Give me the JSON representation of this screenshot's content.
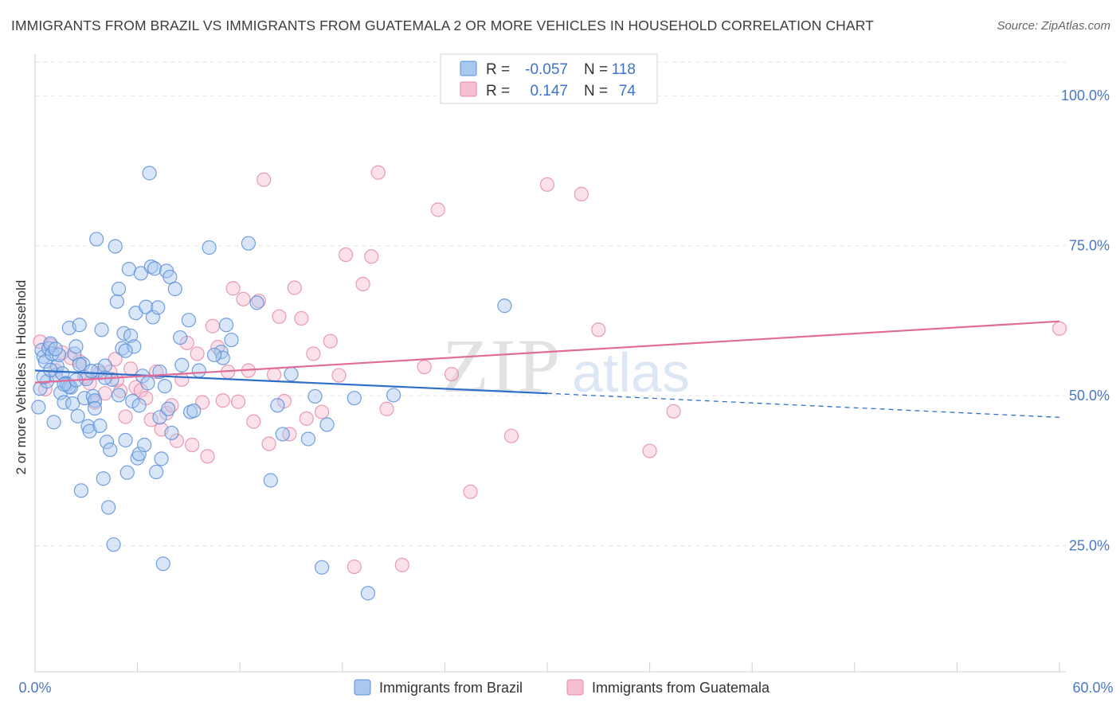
{
  "title": "IMMIGRANTS FROM BRAZIL VS IMMIGRANTS FROM GUATEMALA 2 OR MORE VEHICLES IN HOUSEHOLD CORRELATION CHART",
  "source": "Source: ZipAtlas.com",
  "watermark": {
    "zip": "ZIP",
    "atlas": "atlas"
  },
  "colors": {
    "brazil_fill": "#a9c8f0",
    "brazil_stroke": "#5b8fd8",
    "brazil_line": "#2f6fc8",
    "guatemala_fill": "#f6bfd1",
    "guatemala_stroke": "#e58aa8",
    "guatemala_line": "#e06c97",
    "tick_text": "#4a78c2",
    "grid": "#e3e3e3"
  },
  "legend": {
    "brazil": {
      "r_label": "R =",
      "r_value": "-0.057",
      "n_label": "N =",
      "n_value": "118"
    },
    "guatemala": {
      "r_label": "R =",
      "r_value": "0.147",
      "n_label": "N =",
      "n_value": "74"
    }
  },
  "chart_data": {
    "type": "scatter",
    "title": "IMMIGRANTS FROM BRAZIL VS IMMIGRANTS FROM GUATEMALA 2 OR MORE VEHICLES IN HOUSEHOLD CORRELATION CHART",
    "xlabel": "",
    "ylabel": "2 or more Vehicles in Household",
    "xlim": [
      0,
      60
    ],
    "ylim": [
      4,
      106
    ],
    "x_tick_labels": [
      "0.0%",
      "60.0%"
    ],
    "y_ticks": [
      25,
      50,
      75,
      100
    ],
    "y_tick_labels": [
      "25.0%",
      "50.0%",
      "75.0%",
      "100.0%"
    ],
    "legend_position": "top-center",
    "series": [
      {
        "name": "Immigrants from Brazil",
        "r": -0.057,
        "n": 118,
        "trend": {
          "x0": 0,
          "y0": 54.2,
          "x1": 30,
          "y1": 50.4,
          "dashed_to_x": 60,
          "dashed_to_y": 46.4
        },
        "points": [
          [
            0.2,
            48.1
          ],
          [
            0.3,
            51.2
          ],
          [
            0.4,
            57.6
          ],
          [
            0.5,
            56.5
          ],
          [
            0.6,
            55.7
          ],
          [
            0.7,
            52.4
          ],
          [
            0.8,
            57.9
          ],
          [
            0.9,
            58.7
          ],
          [
            1.0,
            57.0
          ],
          [
            1.1,
            45.6
          ],
          [
            1.2,
            53.4
          ],
          [
            1.3,
            54.9
          ],
          [
            1.4,
            56.8
          ],
          [
            1.5,
            50.5
          ],
          [
            1.6,
            53.7
          ],
          [
            1.7,
            48.9
          ],
          [
            1.8,
            52.1
          ],
          [
            1.9,
            51.9
          ],
          [
            2.0,
            61.3
          ],
          [
            2.1,
            51.4
          ],
          [
            2.2,
            48.7
          ],
          [
            2.3,
            57.0
          ],
          [
            2.4,
            58.2
          ],
          [
            2.5,
            46.6
          ],
          [
            2.6,
            61.8
          ],
          [
            2.7,
            34.2
          ],
          [
            2.8,
            55.3
          ],
          [
            2.9,
            49.6
          ],
          [
            3.1,
            44.9
          ],
          [
            3.2,
            44.1
          ],
          [
            3.4,
            49.9
          ],
          [
            3.5,
            49.2
          ],
          [
            3.6,
            76.1
          ],
          [
            3.7,
            54.2
          ],
          [
            3.8,
            45.0
          ],
          [
            3.9,
            61.0
          ],
          [
            4.0,
            36.2
          ],
          [
            4.1,
            55.0
          ],
          [
            4.2,
            42.3
          ],
          [
            4.3,
            31.4
          ],
          [
            4.4,
            41.0
          ],
          [
            4.5,
            52.7
          ],
          [
            4.6,
            25.2
          ],
          [
            4.7,
            74.9
          ],
          [
            4.8,
            65.7
          ],
          [
            4.9,
            67.8
          ],
          [
            5.1,
            57.9
          ],
          [
            5.2,
            60.4
          ],
          [
            5.3,
            42.6
          ],
          [
            5.4,
            37.2
          ],
          [
            5.5,
            71.1
          ],
          [
            5.6,
            60.0
          ],
          [
            5.7,
            49.1
          ],
          [
            5.8,
            58.2
          ],
          [
            5.9,
            63.8
          ],
          [
            6.0,
            39.6
          ],
          [
            6.1,
            40.3
          ],
          [
            6.2,
            70.4
          ],
          [
            6.3,
            53.3
          ],
          [
            6.4,
            41.8
          ],
          [
            6.5,
            64.8
          ],
          [
            6.6,
            52.1
          ],
          [
            6.7,
            87.1
          ],
          [
            6.8,
            71.5
          ],
          [
            6.9,
            63.1
          ],
          [
            7.0,
            71.2
          ],
          [
            7.1,
            37.3
          ],
          [
            7.2,
            64.7
          ],
          [
            7.3,
            46.4
          ],
          [
            7.4,
            39.5
          ],
          [
            7.5,
            22.0
          ],
          [
            7.6,
            51.6
          ],
          [
            7.7,
            70.8
          ],
          [
            7.8,
            47.8
          ],
          [
            7.9,
            69.8
          ],
          [
            8.0,
            43.8
          ],
          [
            8.2,
            67.8
          ],
          [
            8.5,
            59.7
          ],
          [
            9.0,
            62.6
          ],
          [
            9.1,
            47.3
          ],
          [
            9.3,
            47.5
          ],
          [
            10.2,
            74.7
          ],
          [
            10.9,
            57.3
          ],
          [
            11.0,
            56.3
          ],
          [
            11.5,
            59.3
          ],
          [
            12.5,
            75.4
          ],
          [
            11.2,
            61.8
          ],
          [
            9.6,
            54.2
          ],
          [
            10.5,
            56.8
          ],
          [
            13.0,
            65.5
          ],
          [
            13.8,
            35.9
          ],
          [
            14.2,
            48.4
          ],
          [
            14.5,
            43.6
          ],
          [
            15.0,
            53.6
          ],
          [
            16.0,
            42.8
          ],
          [
            16.4,
            49.9
          ],
          [
            16.8,
            21.4
          ],
          [
            17.1,
            45.2
          ],
          [
            18.7,
            49.6
          ],
          [
            19.5,
            17.1
          ],
          [
            21.0,
            50.1
          ],
          [
            27.5,
            65.0
          ],
          [
            0.5,
            53.1
          ],
          [
            1.2,
            57.8
          ],
          [
            2.0,
            51.5
          ],
          [
            2.6,
            55.2
          ],
          [
            3.0,
            52.8
          ],
          [
            3.3,
            54.1
          ],
          [
            4.1,
            53.0
          ],
          [
            4.9,
            50.1
          ],
          [
            5.3,
            57.5
          ],
          [
            6.1,
            48.4
          ],
          [
            7.3,
            54.0
          ],
          [
            8.6,
            55.1
          ],
          [
            1.7,
            51.9
          ],
          [
            0.9,
            54.3
          ],
          [
            3.5,
            47.9
          ],
          [
            2.4,
            52.6
          ]
        ]
      },
      {
        "name": "Immigrants from Guatemala",
        "r": 0.147,
        "n": 74,
        "trend": {
          "x0": 0,
          "y0": 52.2,
          "x1": 60,
          "y1": 62.4
        },
        "points": [
          [
            0.3,
            59.0
          ],
          [
            0.6,
            51.1
          ],
          [
            0.9,
            58.4
          ],
          [
            1.2,
            54.2
          ],
          [
            1.6,
            57.2
          ],
          [
            2.1,
            56.3
          ],
          [
            2.6,
            55.7
          ],
          [
            2.9,
            53.1
          ],
          [
            3.2,
            52.1
          ],
          [
            3.5,
            48.9
          ],
          [
            3.8,
            53.8
          ],
          [
            4.1,
            50.4
          ],
          [
            4.4,
            54.0
          ],
          [
            4.7,
            56.1
          ],
          [
            5.0,
            50.8
          ],
          [
            5.3,
            46.5
          ],
          [
            5.6,
            54.5
          ],
          [
            5.9,
            51.4
          ],
          [
            6.2,
            50.9
          ],
          [
            6.5,
            49.6
          ],
          [
            6.8,
            46.0
          ],
          [
            7.1,
            54.0
          ],
          [
            7.4,
            44.4
          ],
          [
            7.7,
            47.1
          ],
          [
            8.0,
            48.4
          ],
          [
            8.3,
            42.5
          ],
          [
            8.6,
            52.7
          ],
          [
            8.9,
            58.8
          ],
          [
            9.2,
            41.8
          ],
          [
            9.5,
            57.0
          ],
          [
            9.8,
            48.9
          ],
          [
            10.1,
            39.9
          ],
          [
            10.4,
            61.6
          ],
          [
            10.7,
            58.1
          ],
          [
            11.0,
            49.2
          ],
          [
            11.3,
            54.0
          ],
          [
            11.6,
            67.9
          ],
          [
            11.9,
            49.0
          ],
          [
            12.2,
            66.1
          ],
          [
            12.5,
            54.2
          ],
          [
            12.8,
            45.7
          ],
          [
            13.1,
            65.8
          ],
          [
            13.4,
            86.0
          ],
          [
            13.7,
            42.0
          ],
          [
            14.0,
            53.5
          ],
          [
            14.3,
            63.2
          ],
          [
            14.6,
            49.1
          ],
          [
            14.9,
            43.6
          ],
          [
            15.2,
            68.0
          ],
          [
            15.6,
            62.9
          ],
          [
            15.9,
            46.2
          ],
          [
            16.3,
            57.0
          ],
          [
            16.8,
            47.3
          ],
          [
            17.3,
            59.1
          ],
          [
            17.8,
            53.4
          ],
          [
            18.2,
            73.5
          ],
          [
            18.7,
            21.5
          ],
          [
            19.2,
            68.6
          ],
          [
            19.7,
            73.2
          ],
          [
            20.1,
            87.2
          ],
          [
            20.6,
            47.8
          ],
          [
            21.5,
            21.8
          ],
          [
            22.8,
            54.8
          ],
          [
            23.6,
            81.0
          ],
          [
            24.4,
            53.6
          ],
          [
            25.5,
            34.0
          ],
          [
            27.9,
            43.3
          ],
          [
            30.0,
            85.2
          ],
          [
            32.0,
            83.6
          ],
          [
            33.0,
            61.0
          ],
          [
            36.0,
            40.8
          ],
          [
            37.4,
            47.4
          ],
          [
            60.0,
            61.2
          ],
          [
            4.8,
            52.6
          ]
        ]
      }
    ]
  },
  "bottom_legend": {
    "brazil": "Immigrants from Brazil",
    "guatemala": "Immigrants from Guatemala"
  }
}
